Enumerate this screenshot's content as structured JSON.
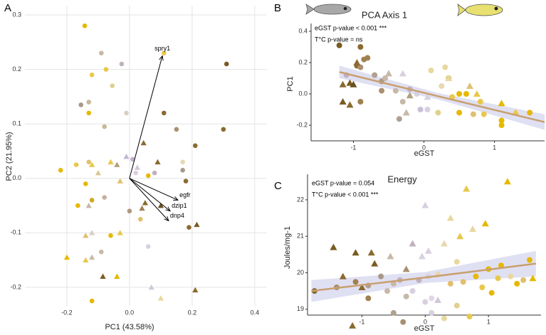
{
  "chart_data": [
    {
      "type": "scatter",
      "panel": "A",
      "xlabel": "PC1 (43.58%)",
      "ylabel": "PC2 (21.95%)",
      "xlim": [
        -0.334,
        0.439
      ],
      "ylim": [
        -0.234,
        0.317
      ],
      "xticks": [
        -0.2,
        {
          "value": 0,
          "label": "0.0"
        },
        0.2,
        0.4
      ],
      "yticks": [
        -0.2,
        -0.1,
        {
          "value": 0,
          "label": "0.0"
        },
        0.1,
        0.2,
        0.3
      ],
      "grid": true,
      "series": [
        {
          "marker": "circle",
          "x": [
            -0.143,
            -0.12,
            -0.075,
            -0.09,
            -0.025,
            -0.055,
            -0.13,
            -0.155,
            -0.13,
            -0.08,
            -0.01,
            0.11,
            0.11,
            0.15,
            0.21,
            0.31,
            0.3,
            -0.22,
            -0.17,
            -0.13,
            -0.14,
            -0.12,
            -0.165,
            -0.08,
            0,
            0.02,
            0.08,
            0.17,
            0.18,
            0.17,
            0.06,
            -0.06,
            -0.09,
            0.06,
            0.19,
            -0.12,
            0.035,
            0.01
          ],
          "y": [
            0.28,
            0.19,
            0.2,
            0.23,
            0.21,
            0.17,
            0.14,
            0.135,
            0.12,
            0.095,
            0.12,
            0.23,
            0.12,
            0.09,
            0.06,
            0.21,
            0.09,
            0.015,
            0.025,
            0.03,
            -0.01,
            -0.04,
            -0.05,
            -0.035,
            -0.06,
            0.01,
            0.01,
            0.015,
            -0.005,
            0.03,
            0.005,
            -0.105,
            -0.135,
            -0.125,
            -0.09,
            -0.225,
            -0.075,
            0.035
          ],
          "colors": [
            "#e6b800",
            "#e8c84a",
            "#e8c84a",
            "#c8b8a8",
            "#c0b0c0",
            "#e0d090",
            "#c8b898",
            "#a89888",
            "#e6b800",
            "#c8b898",
            "#d8d0c0",
            "#e8c84a",
            "#8a6a30",
            "#a89070",
            "#8a6a30",
            "#7a5a20",
            "#8a6a30",
            "#e6b800",
            "#e8c84a",
            "#e0c070",
            "#e6b800",
            "#d0a820",
            "#e6b800",
            "#c8b0a0",
            "#b09880",
            "#d8d0e0",
            "#c0b0c0",
            "#a89888",
            "#8a6a30",
            "#e8d8b0",
            "#e6b800",
            "#e6b800",
            "#c8b8a8",
            "#d8d0e0",
            "#8a6a30",
            "#e6b800",
            "#e0c070",
            "#c0b0d0"
          ]
        },
        {
          "marker": "triangle",
          "x": [
            0.09,
            0.045,
            -0.01,
            0.025,
            -0.12,
            -0.06,
            -0.1,
            -0.04,
            -0.03,
            -0.13,
            0.05,
            0.1,
            0.04,
            0.215,
            -0.12,
            -0.14,
            -0.03,
            -0.2,
            -0.14,
            -0.12,
            -0.085,
            -0.04,
            0.07,
            0.1,
            0.21
          ],
          "y": [
            0.03,
            0.065,
            0.04,
            0.02,
            0.025,
            0.03,
            0.01,
            0.025,
            -0.005,
            -0.05,
            -0.045,
            -0.05,
            -0.055,
            -0.085,
            -0.1,
            -0.105,
            -0.1,
            -0.145,
            -0.15,
            -0.145,
            -0.18,
            -0.18,
            -0.2,
            -0.22,
            -0.205
          ],
          "colors": [
            "#8a6a30",
            "#8a6a30",
            "#c0b8d0",
            "#d0c8d8",
            "#e8c84a",
            "#e8c84a",
            "#d8c890",
            "#b0a080",
            "#e0c070",
            "#c8b8a8",
            "#8a6a30",
            "#6a5020",
            "#a08050",
            "#7a5a20",
            "#d8d0c0",
            "#e0c070",
            "#e8c84a",
            "#e6b800",
            "#e8c84a",
            "#c8b8a8",
            "#7a5a20",
            "#e6b800",
            "#d0c8d8",
            "#e8d8a0",
            "#8a6a30"
          ]
        }
      ],
      "loadings": [
        {
          "label": "spry1",
          "x": 0.105,
          "y": 0.225
        },
        {
          "label": "egfr",
          "x": 0.155,
          "y": -0.04
        },
        {
          "label": "dzip1",
          "x": 0.13,
          "y": -0.06
        },
        {
          "label": "dnp4",
          "x": 0.125,
          "y": -0.078
        }
      ]
    },
    {
      "type": "scatter",
      "panel": "B",
      "title": "PCA Axis 1",
      "xlabel": "eGST",
      "ylabel": "PC1",
      "annotations": [
        "eGST p-value < 0.001 ***",
        "T°C p-value = ns"
      ],
      "xlim": [
        -1.6,
        1.71
      ],
      "ylim": [
        -0.3,
        0.45
      ],
      "xticks": [
        -1,
        0,
        1
      ],
      "yticks": [
        -0.2,
        {
          "value": 0,
          "label": "0.0"
        },
        0.2,
        0.4
      ],
      "grid": false,
      "series": [
        {
          "marker": "circle",
          "x": [
            -1.2,
            -0.9,
            -0.85,
            -0.8,
            -0.95,
            -1.1,
            -0.9,
            -0.6,
            -0.55,
            -0.7,
            -0.4,
            -0.3,
            -0.2,
            -0.1,
            0.05,
            0.1,
            0.25,
            0.3,
            0.35,
            0.4,
            0.5,
            0.6,
            0.5,
            0.7,
            0.8,
            0.85,
            1.1,
            1.1,
            1.3,
            1.5,
            -0.9,
            -0.6,
            -0.35,
            0.2,
            -0.05
          ],
          "y": [
            0.31,
            0.3,
            0.22,
            0.23,
            0.18,
            0.12,
            0.17,
            0.08,
            0.1,
            0.12,
            0.02,
            -0.05,
            0.03,
            0.0,
            -0.1,
            0.15,
            0.05,
            0.17,
            0.1,
            -0.02,
            0.0,
            0.0,
            -0.12,
            -0.13,
            -0.05,
            -0.13,
            -0.2,
            -0.17,
            -0.12,
            -0.12,
            -0.05,
            0.02,
            -0.16,
            -0.12,
            -0.1
          ],
          "colors": [
            "#7a5a20",
            "#8a6a30",
            "#a08050",
            "#a08050",
            "#8a6a30",
            "#c0b0c0",
            "#a89070",
            "#a89888",
            "#c8b8a8",
            "#b0a090",
            "#c8b8a8",
            "#c8b8a8",
            "#c0b0c0",
            "#d8d0e0",
            "#d8d0e0",
            "#e8d8a0",
            "#e8d8b0",
            "#e8d8a0",
            "#e0c070",
            "#e8c84a",
            "#e6b800",
            "#e6b800",
            "#e6b800",
            "#e0c070",
            "#e8c84a",
            "#e8c84a",
            "#e6b800",
            "#e6b800",
            "#e8d8a0",
            "#e6b800",
            "#a08050",
            "#a89070",
            "#b0a090",
            "#e0d090",
            "#c8c0d8"
          ]
        },
        {
          "marker": "triangle",
          "x": [
            -1.15,
            -1.05,
            -1.0,
            -1.05,
            -1.15,
            -0.95,
            -0.5,
            -0.3,
            -0.2,
            -0.25,
            0.05,
            0.35,
            0.65,
            0.75,
            1.1,
            1.3
          ],
          "y": [
            0.06,
            0.07,
            0.06,
            -0.07,
            -0.05,
            0.2,
            0.13,
            0.13,
            -0.01,
            -0.12,
            -0.02,
            0.1,
            0.05,
            0.0,
            -0.06,
            -0.12
          ],
          "colors": [
            "#8a6a30",
            "#7a5a20",
            "#6a5020",
            "#8a6a30",
            "#7a5a20",
            "#8a6a30",
            "#c8b8a8",
            "#d8d0e0",
            "#b0a080",
            "#c8b8a8",
            "#d8d0e0",
            "#e8d8a0",
            "#e0c070",
            "#e8c84a",
            "#e6b800",
            "#e8c84a"
          ]
        }
      ],
      "fit": {
        "color": "#c8a070",
        "band_color": "#d8d8f0",
        "x": [
          -1.2,
          0.2,
          1.71
        ],
        "y": [
          0.14,
          -0.015,
          -0.18
        ],
        "ci_low": [
          0.1,
          -0.035,
          -0.23
        ],
        "ci_high": [
          0.18,
          0.005,
          -0.13
        ]
      }
    },
    {
      "type": "scatter",
      "panel": "C",
      "title": "Energy",
      "xlabel": "eGST",
      "ylabel": "Joules/mg-1",
      "annotations": [
        "eGST p-value = 0.054",
        "T°C p-value < 0.001 ***"
      ],
      "xlim": [
        -1.86,
        1.83
      ],
      "ylim": [
        18.84,
        22.7
      ],
      "xticks": [
        -1,
        0,
        1
      ],
      "yticks": [
        19,
        20,
        21,
        22
      ],
      "grid": false,
      "series": [
        {
          "marker": "circle",
          "x": [
            -1.75,
            -1.4,
            -1.1,
            -0.9,
            -0.7,
            -0.6,
            -0.5,
            -0.4,
            -0.3,
            -0.2,
            -0.1,
            0.0,
            0.05,
            0.1,
            0.2,
            0.3,
            0.4,
            0.5,
            0.6,
            0.7,
            0.8,
            0.9,
            1.0,
            1.05,
            1.15,
            1.2,
            1.35,
            1.45,
            1.65,
            1.55,
            -0.9,
            -0.5,
            -0.35,
            0.1,
            0.5
          ],
          "y": [
            19.5,
            19.6,
            19.75,
            19.65,
            19.9,
            19.5,
            19.7,
            19.8,
            19.35,
            19.5,
            19.8,
            19.2,
            19.9,
            19.3,
            19.95,
            18.75,
            19.7,
            20.3,
            19.75,
            18.8,
            19.9,
            19.6,
            20.1,
            19.45,
            19.85,
            20.2,
            19.9,
            19.7,
            20.35,
            19.8,
            19.3,
            18.9,
            18.65,
            18.9,
            19.1
          ],
          "colors": [
            "#8a6a30",
            "#a89070",
            "#a08050",
            "#b0a090",
            "#a89888",
            "#c8b8a8",
            "#c8b8a8",
            "#c0b0c0",
            "#c8b8a8",
            "#d8d0e0",
            "#c0b0c0",
            "#d8d0e0",
            "#d8d0e0",
            "#e0d8e8",
            "#e8d8b0",
            "#e8d8a0",
            "#e0c070",
            "#e8d8a0",
            "#e0c070",
            "#e8c84a",
            "#e6b800",
            "#e8c84a",
            "#e6b800",
            "#e6b800",
            "#e8c84a",
            "#e6b800",
            "#e8d8a0",
            "#e6b800",
            "#e6b800",
            "#e0c070",
            "#a08050",
            "#b0a090",
            "#a89070",
            "#d8d0e0",
            "#e0d090"
          ]
        },
        {
          "marker": "triangle",
          "x": [
            -1.45,
            -1.3,
            -1.1,
            -1.15,
            -0.85,
            -0.8,
            -1.0,
            -0.55,
            -0.3,
            -0.2,
            -0.05,
            0.0,
            0.05,
            0.3,
            0.4,
            0.55,
            0.65,
            0.75,
            0.95,
            1.3,
            1.7,
            0.2
          ],
          "y": [
            20.7,
            19.9,
            20.55,
            18.55,
            20.55,
            20.25,
            19.6,
            20.45,
            20.1,
            20.8,
            20.45,
            21.85,
            20.6,
            20.8,
            21.5,
            21.0,
            22.3,
            21.2,
            21.35,
            22.5,
            19.85,
            19.25
          ],
          "colors": [
            "#7a5a20",
            "#8a6a30",
            "#7a5a20",
            "#8a6a30",
            "#8a6a30",
            "#7a5a20",
            "#8a6a30",
            "#c8b8a8",
            "#a89070",
            "#c0b0c0",
            "#d8d0e0",
            "#d8d0e0",
            "#d8d0e0",
            "#e8d8b0",
            "#e8d8a0",
            "#e8c84a",
            "#e8c84a",
            "#e8d8a0",
            "#e6b800",
            "#e6b800",
            "#e6b800",
            "#d0c8d8"
          ]
        }
      ],
      "fit": {
        "color": "#c8a070",
        "band_color": "#d8d8f0",
        "x": [
          -1.8,
          0,
          1.75
        ],
        "y": [
          19.5,
          19.87,
          20.25
        ],
        "ci_low": [
          19.2,
          19.72,
          19.9
        ],
        "ci_high": [
          19.8,
          20.02,
          20.6
        ]
      }
    }
  ]
}
